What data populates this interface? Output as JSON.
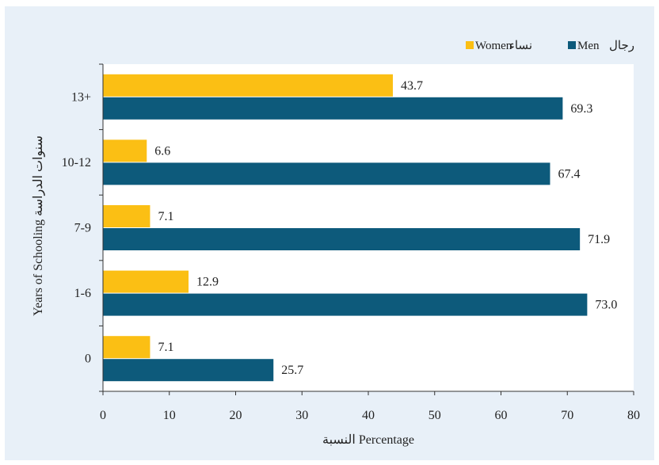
{
  "chart_data": {
    "type": "bar",
    "orientation": "horizontal",
    "categories": [
      "13+",
      "10-12",
      "7-9",
      "1-6",
      "0"
    ],
    "series": [
      {
        "name": "نساء Women",
        "color": "#fbbf14",
        "values": [
          43.7,
          6.6,
          7.1,
          12.9,
          7.1
        ]
      },
      {
        "name": "رجال Men",
        "color": "#0d5a7b",
        "values": [
          69.3,
          67.4,
          71.9,
          73.0,
          25.7
        ]
      }
    ],
    "data_labels": {
      "women": [
        "43.7",
        "6.6",
        "7.1",
        "12.9",
        "7.1"
      ],
      "men": [
        "69.3",
        "67.4",
        "71.9",
        "73.0",
        "25.7"
      ]
    },
    "xticks": [
      "0",
      "10",
      "20",
      "30",
      "40",
      "50",
      "60",
      "70",
      "80"
    ],
    "xlim": [
      0,
      80
    ],
    "xlabel": "النسبة  Percentage",
    "ylabel": "Years of Schooling  سنوات الدراسة",
    "legend": {
      "placement": "top-right",
      "women_latin": "Women",
      "women_arabic": "نساء",
      "men_latin": "Men",
      "men_arabic": "رجال"
    },
    "grid": false
  }
}
